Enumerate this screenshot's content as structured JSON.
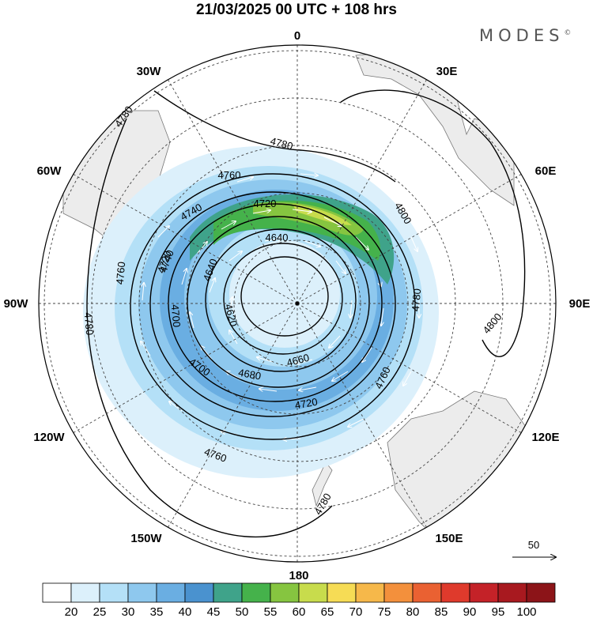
{
  "title": "21/03/2025  00 UTC  + 108 hrs",
  "brand": "MODES",
  "brand_mark": "©",
  "meridians": [
    {
      "label": "0",
      "lon": 0
    },
    {
      "label": "30E",
      "lon": 30
    },
    {
      "label": "60E",
      "lon": 60
    },
    {
      "label": "90E",
      "lon": 90
    },
    {
      "label": "120E",
      "lon": 120
    },
    {
      "label": "150E",
      "lon": 150
    },
    {
      "label": "180",
      "lon": 180
    },
    {
      "label": "150W",
      "lon": -150
    },
    {
      "label": "120W",
      "lon": -120
    },
    {
      "label": "90W",
      "lon": -90
    },
    {
      "label": "60W",
      "lon": -60
    },
    {
      "label": "30W",
      "lon": -30
    }
  ],
  "contours": [
    {
      "label": "4800"
    },
    {
      "label": "4800"
    },
    {
      "label": "4780"
    },
    {
      "label": "4780"
    },
    {
      "label": "4780"
    },
    {
      "label": "4780"
    },
    {
      "label": "4780"
    },
    {
      "label": "4760"
    },
    {
      "label": "4760"
    },
    {
      "label": "4760"
    },
    {
      "label": "4760"
    },
    {
      "label": "4740"
    },
    {
      "label": "4740"
    },
    {
      "label": "4720"
    },
    {
      "label": "4720"
    },
    {
      "label": "4720"
    },
    {
      "label": "4700"
    },
    {
      "label": "4700"
    },
    {
      "label": "4680"
    },
    {
      "label": "4660"
    },
    {
      "label": "4640"
    },
    {
      "label": "4640"
    },
    {
      "label": "4620"
    }
  ],
  "vector_reference": {
    "label": "50"
  },
  "colorbar": {
    "labels": [
      "20",
      "25",
      "30",
      "35",
      "40",
      "45",
      "50",
      "55",
      "60",
      "65",
      "70",
      "75",
      "80",
      "85",
      "90",
      "95",
      "100"
    ],
    "colors": [
      "#ffffff",
      "#dcf0fb",
      "#b4e0f7",
      "#8ec8ee",
      "#6aaee2",
      "#4a92cf",
      "#3fa38a",
      "#45b24b",
      "#86c540",
      "#c8dc4c",
      "#f6dc55",
      "#f6b84a",
      "#f3903c",
      "#ea6132",
      "#df3a2c",
      "#c42228",
      "#a8191f",
      "#8c1418"
    ]
  }
}
